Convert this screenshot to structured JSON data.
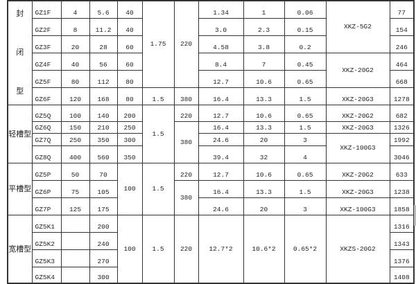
{
  "table": {
    "groups": [
      {
        "type": "封\n\n闭\n\n型",
        "vertical": true,
        "rows": [
          [
            {
              "t": "GZ1F"
            },
            {
              "t": "4"
            },
            {
              "t": "5.6"
            },
            {
              "t": "40"
            },
            {
              "t": "1.75",
              "span": 5
            },
            {
              "t": "220",
              "span": 5
            },
            {
              "t": "1.34"
            },
            {
              "t": "1"
            },
            {
              "t": "0.06"
            },
            {
              "t": "XKZ-5G2",
              "span": 3
            },
            {
              "t": "77"
            }
          ],
          [
            {
              "t": "GZ2F"
            },
            {
              "t": "8"
            },
            {
              "t": "11.2"
            },
            {
              "t": "40"
            },
            {
              "t": "3.0"
            },
            {
              "t": "2.3"
            },
            {
              "t": "0.15"
            },
            {
              "t": "154"
            }
          ],
          [
            {
              "t": "GZ3F"
            },
            {
              "t": "20"
            },
            {
              "t": "28"
            },
            {
              "t": "60"
            },
            {
              "t": "4.58"
            },
            {
              "t": "3.8"
            },
            {
              "t": "0.2"
            },
            {
              "t": "246"
            }
          ],
          [
            {
              "t": "GZ4F"
            },
            {
              "t": "40"
            },
            {
              "t": "56"
            },
            {
              "t": "60"
            },
            {
              "t": "8.4"
            },
            {
              "t": "7"
            },
            {
              "t": "0.45"
            },
            {
              "t": "XKZ-20G2",
              "span": 2
            },
            {
              "t": "464"
            }
          ],
          [
            {
              "t": "GZ5F"
            },
            {
              "t": "80"
            },
            {
              "t": "112"
            },
            {
              "t": "80"
            },
            {
              "t": "12.7"
            },
            {
              "t": "10.6"
            },
            {
              "t": "0.65"
            },
            {
              "t": "668"
            }
          ],
          [
            {
              "t": "GZ6F"
            },
            {
              "t": "120"
            },
            {
              "t": "168"
            },
            {
              "t": "80"
            },
            {
              "t": "1.5"
            },
            {
              "t": "380"
            },
            {
              "t": "16.4"
            },
            {
              "t": "13.3"
            },
            {
              "t": "1.5"
            },
            {
              "t": "XKZ-20G3"
            },
            {
              "t": "1278"
            }
          ]
        ]
      },
      {
        "type": "轻槽型",
        "vertical": false,
        "rows": [
          [
            {
              "t": "GZ5Q"
            },
            {
              "t": "100"
            },
            {
              "t": "140"
            },
            {
              "t": "200"
            },
            {
              "t": "1.5",
              "span": 4
            },
            {
              "t": "220"
            },
            {
              "t": "12.7"
            },
            {
              "t": "10.6"
            },
            {
              "t": "0.65"
            },
            {
              "t": "XKZ-20G2"
            },
            {
              "t": "682"
            }
          ],
          [
            {
              "t": "GZ6Q"
            },
            {
              "t": "150"
            },
            {
              "t": "210"
            },
            {
              "t": "250"
            },
            {
              "t": "380",
              "span": 3
            },
            {
              "t": "16.4"
            },
            {
              "t": "13.3"
            },
            {
              "t": "1.5"
            },
            {
              "t": "XKZ-20G3"
            },
            {
              "t": "1326"
            }
          ],
          [
            {
              "t": "GZ7Q"
            },
            {
              "t": "250"
            },
            {
              "t": "350"
            },
            {
              "t": "300"
            },
            {
              "t": "24.6"
            },
            {
              "t": "20"
            },
            {
              "t": "3"
            },
            {
              "t": "XKZ-100G3",
              "span": 2
            },
            {
              "t": "1992"
            }
          ],
          [
            {
              "t": "GZ8Q"
            },
            {
              "t": "400"
            },
            {
              "t": "560"
            },
            {
              "t": "350"
            },
            {
              "t": "39.4"
            },
            {
              "t": "32"
            },
            {
              "t": "4"
            },
            {
              "t": "3046"
            }
          ]
        ]
      },
      {
        "type": "平槽型",
        "vertical": false,
        "rows": [
          [
            {
              "t": "GZ5P"
            },
            {
              "t": "50"
            },
            {
              "t": "70"
            },
            {
              "t": "100",
              "span": 3
            },
            {
              "t": "1.5",
              "span": 3
            },
            {
              "t": "220"
            },
            {
              "t": "12.7"
            },
            {
              "t": "10.6"
            },
            {
              "t": "0.65"
            },
            {
              "t": "XKZ-20G2"
            },
            {
              "t": "633"
            }
          ],
          [
            {
              "t": "GZ6P"
            },
            {
              "t": "75"
            },
            {
              "t": "105"
            },
            {
              "t": "380",
              "span": 2
            },
            {
              "t": "16.4"
            },
            {
              "t": "13.3"
            },
            {
              "t": "1.5"
            },
            {
              "t": "XKZ-20G3"
            },
            {
              "t": "1238"
            }
          ],
          [
            {
              "t": "GZ7P"
            },
            {
              "t": "125"
            },
            {
              "t": "175"
            },
            {
              "t": "24.6"
            },
            {
              "t": "20"
            },
            {
              "t": "3"
            },
            {
              "t": "XKZ-100G3"
            },
            {
              "t": "1858"
            }
          ]
        ]
      },
      {
        "type": "宽槽型",
        "vertical": false,
        "rows": [
          [
            {
              "t": "GZ5K1"
            },
            {
              "t": ""
            },
            {
              "t": "200"
            },
            {
              "t": "100",
              "span": 4
            },
            {
              "t": "1.5",
              "span": 4
            },
            {
              "t": "220",
              "span": 4
            },
            {
              "t": "12.7*2",
              "span": 4
            },
            {
              "t": "10.6*2",
              "span": 4
            },
            {
              "t": "0.65*2",
              "span": 4
            },
            {
              "t": "XKZS-20G2",
              "span": 4
            },
            {
              "t": "1316"
            }
          ],
          [
            {
              "t": "GZ5K2"
            },
            {
              "t": ""
            },
            {
              "t": "240"
            },
            {
              "t": "1343"
            }
          ],
          [
            {
              "t": "GZ5K3"
            },
            {
              "t": ""
            },
            {
              "t": "270"
            },
            {
              "t": "1376"
            }
          ],
          [
            {
              "t": "GZ5K4"
            },
            {
              "t": ""
            },
            {
              "t": "300"
            },
            {
              "t": "1408"
            }
          ]
        ]
      }
    ]
  }
}
